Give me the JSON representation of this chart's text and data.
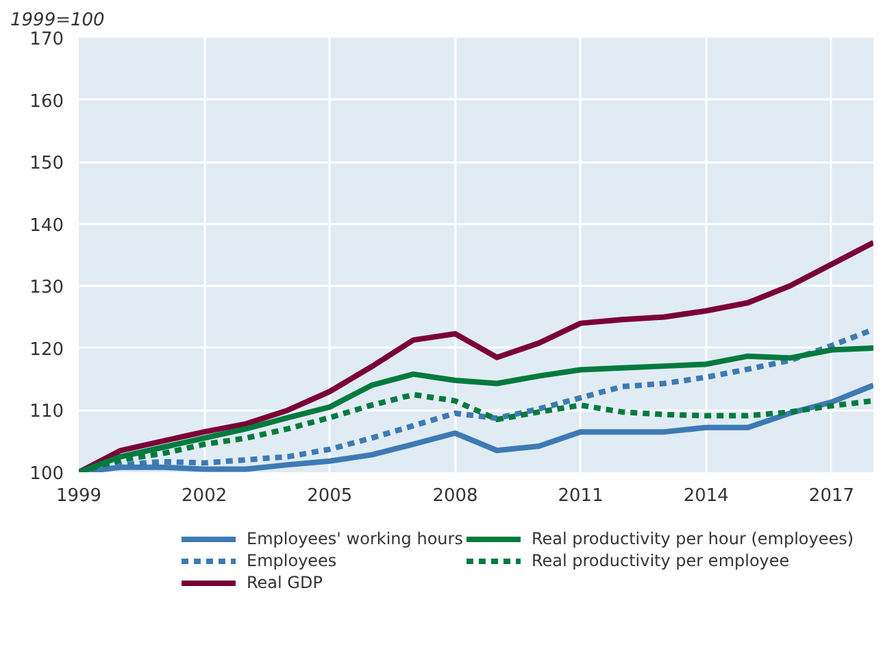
{
  "chart_data": {
    "type": "line",
    "ylabel": "1999=100",
    "x": [
      1999,
      2000,
      2001,
      2002,
      2003,
      2004,
      2005,
      2006,
      2007,
      2008,
      2009,
      2010,
      2011,
      2012,
      2013,
      2014,
      2015,
      2016,
      2017,
      2018
    ],
    "xlim": [
      1999,
      2018
    ],
    "xticks": [
      1999,
      2002,
      2005,
      2008,
      2011,
      2014,
      2017
    ],
    "ylim": [
      100,
      170
    ],
    "yticks": [
      100,
      110,
      120,
      130,
      140,
      150,
      160,
      170
    ],
    "grid": true,
    "legend": "bottom",
    "marker": "none",
    "series": [
      {
        "name": "Employees' working hours",
        "color": "#3d7ab3",
        "line_style": "solid",
        "values": [
          100,
          100.8,
          100.8,
          100.5,
          100.5,
          101.2,
          101.8,
          102.8,
          104.5,
          106.3,
          103.5,
          104.2,
          106.5,
          106.5,
          106.5,
          107.2,
          107.2,
          109.5,
          111.3,
          114
        ]
      },
      {
        "name": "Employees",
        "color": "#3d7ab3",
        "line_style": "dotted",
        "values": [
          100,
          101.2,
          101.7,
          101.5,
          102,
          102.5,
          103.7,
          105.5,
          107.5,
          109.5,
          108.7,
          110.2,
          112,
          113.8,
          114.3,
          115.3,
          116.6,
          118,
          120.4,
          123
        ]
      },
      {
        "name": "Real GDP",
        "color": "#7a0036",
        "line_style": "solid",
        "values": [
          100,
          103.5,
          105,
          106.5,
          107.8,
          110,
          113,
          117,
          121.3,
          122.3,
          118.5,
          120.8,
          124,
          124.6,
          125,
          126,
          127.3,
          130,
          133.5,
          137
        ]
      },
      {
        "name": "Real productivity per hour (employees)",
        "color": "#007a3d",
        "line_style": "solid",
        "values": [
          100,
          102.5,
          104,
          105.5,
          107,
          108.8,
          110.5,
          114,
          115.8,
          114.8,
          114.3,
          115.5,
          116.5,
          116.8,
          117.1,
          117.4,
          118.7,
          118.4,
          119.7,
          120
        ]
      },
      {
        "name": "Real productivity per employee",
        "color": "#007a3d",
        "line_style": "dotted",
        "values": [
          100,
          102,
          103,
          104.5,
          105.5,
          107,
          108.8,
          110.8,
          112.5,
          111.5,
          108.5,
          109.7,
          110.8,
          109.7,
          109.3,
          109.1,
          109.1,
          109.7,
          110.7,
          111.5
        ]
      }
    ]
  }
}
